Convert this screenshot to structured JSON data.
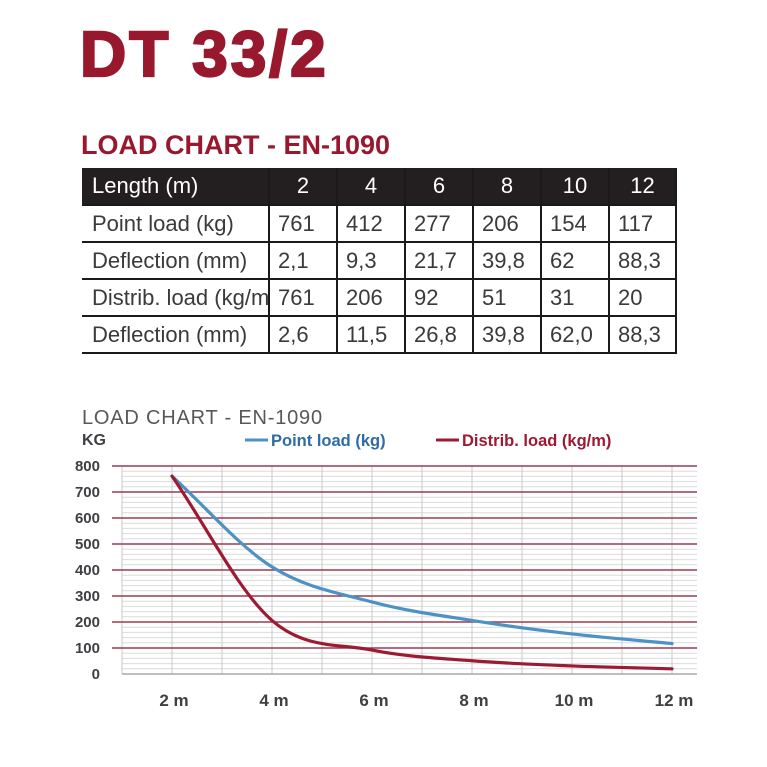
{
  "page": {
    "title": "DT 33/2",
    "section_title": "LOAD CHART - EN-1090"
  },
  "table": {
    "columns": [
      "Length (m)",
      "2",
      "4",
      "6",
      "8",
      "10",
      "12"
    ],
    "rows": [
      {
        "label": "Point load (kg)",
        "values": [
          "761",
          "412",
          "277",
          "206",
          "154",
          "117"
        ]
      },
      {
        "label": "Deflection (mm)",
        "values": [
          "2,1",
          "9,3",
          "21,7",
          "39,8",
          "62",
          "88,3"
        ]
      },
      {
        "label": "Distrib. load (kg/m)",
        "values": [
          "761",
          "206",
          "92",
          "51",
          "31",
          "20"
        ]
      },
      {
        "label": "Deflection (mm)",
        "values": [
          "2,6",
          "11,5",
          "26,8",
          "39,8",
          "62,0",
          "88,3"
        ]
      }
    ]
  },
  "chart_data": {
    "type": "line",
    "title": "LOAD CHART - EN-1090",
    "ylabel": "KG",
    "x": [
      2,
      4,
      6,
      8,
      10,
      12
    ],
    "x_tick_labels": [
      "2 m",
      "4 m",
      "6 m",
      "8 m",
      "10 m",
      "12 m"
    ],
    "y_ticks": [
      0,
      100,
      200,
      300,
      400,
      500,
      600,
      700,
      800
    ],
    "ylim": [
      0,
      800
    ],
    "xlim": [
      1,
      12.5
    ],
    "grid": {
      "minor_step_kg": 20,
      "vertical_step_m": 1,
      "grid_on": true
    },
    "legend_position": "top",
    "series": [
      {
        "name": "Point load (kg)",
        "values": [
          761,
          412,
          277,
          206,
          154,
          117
        ],
        "line_color": "#4D92C5",
        "label_color": "#2D6DA3"
      },
      {
        "name": "Distrib. load (kg/m)",
        "values": [
          761,
          206,
          92,
          51,
          31,
          20
        ],
        "line_color": "#9D1B32",
        "label_color": "#9D1B32"
      }
    ]
  },
  "colors": {
    "brand_maroon": "#98182E",
    "table_header_bg": "#231F20",
    "table_header_text": "#FFFFFF",
    "table_text": "#3A3A3C",
    "table_border": "#1A1A1A",
    "chart_title": "#57585B",
    "axis_label": "#3E4043",
    "grid_major": "#9C3A50",
    "grid_minor": "#DBDBDB",
    "grid_vertical": "#C8C8C8",
    "axis_zero_line": "#A8A8A8"
  }
}
